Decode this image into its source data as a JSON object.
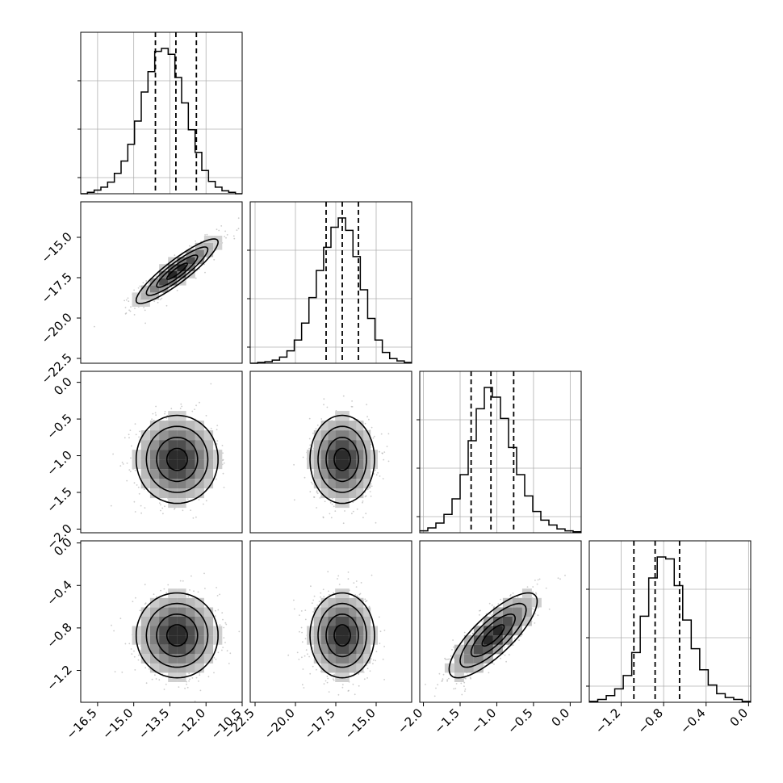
{
  "chart_data": {
    "type": "corner",
    "parameters": [
      {
        "id": "p1",
        "range": [
          -17.2,
          -10.5
        ],
        "ticks": [
          -16.5,
          -15.0,
          -13.5,
          -12.0,
          -10.5
        ],
        "tick_labels": [
          "−16.5",
          "−15.0",
          "−13.5",
          "−12.0",
          "−10.5"
        ],
        "quantiles": [
          -14.1,
          -13.25,
          -12.4
        ],
        "mean": -13.2,
        "sd": 0.85
      },
      {
        "id": "p2",
        "range": [
          -22.8,
          -12.8
        ],
        "ticks": [
          -22.5,
          -20.0,
          -17.5,
          -15.0
        ],
        "tick_labels": [
          "−22.5",
          "−20.0",
          "−17.5",
          "−15.0"
        ],
        "quantiles": [
          -18.1,
          -17.1,
          -16.1
        ],
        "mean": -17.1,
        "sd": 1.0
      },
      {
        "id": "p3",
        "range": [
          -2.05,
          0.15
        ],
        "ticks": [
          -2.0,
          -1.5,
          -1.0,
          -0.5,
          0.0
        ],
        "tick_labels": [
          "−2.0",
          "−1.5",
          "−1.0",
          "−0.5",
          "0.0"
        ],
        "quantiles": [
          -1.35,
          -1.08,
          -0.77
        ],
        "mean": -1.05,
        "sd": 0.3
      },
      {
        "id": "p4",
        "range": [
          -1.5,
          0.02
        ],
        "ticks": [
          -1.2,
          -0.8,
          -0.4,
          0.0
        ],
        "tick_labels": [
          "−1.2",
          "−0.8",
          "−0.4",
          "0.0"
        ],
        "quantiles": [
          -1.08,
          -0.88,
          -0.65
        ],
        "mean": -0.87,
        "sd": 0.2
      }
    ],
    "left_ticks": {
      "p2": {
        "ticks": [
          -15.0,
          -17.5,
          -20.0,
          -22.5
        ],
        "tick_labels": [
          "−15.0",
          "−17.5",
          "−20.0",
          "−22.5"
        ]
      },
      "p3": {
        "ticks": [
          0.0,
          -0.5,
          -1.0,
          -1.5,
          -2.0
        ],
        "tick_labels": [
          "0.0",
          "−0.5",
          "−1.0",
          "−1.5",
          "−2.0"
        ]
      },
      "p4": {
        "ticks": [
          0.0,
          -0.4,
          -0.8,
          -1.2
        ],
        "tick_labels": [
          "0.0",
          "−0.4",
          "−0.8",
          "−1.2"
        ]
      }
    },
    "correlations": {
      "1-0": 0.9,
      "2-0": 0.0,
      "2-1": 0.0,
      "3-0": 0.0,
      "3-1": 0.0,
      "3-2": 0.8
    },
    "histograms": [
      [
        0,
        2,
        5,
        9,
        16,
        28,
        45,
        68,
        100,
        140,
        168,
        196,
        200,
        192,
        160,
        125,
        88,
        57,
        32,
        17,
        9,
        4,
        2,
        0
      ],
      [
        0,
        1,
        2,
        4,
        8,
        16,
        30,
        52,
        85,
        120,
        150,
        176,
        188,
        172,
        138,
        95,
        58,
        30,
        14,
        6,
        3,
        1
      ],
      [
        2,
        5,
        10,
        19,
        35,
        60,
        95,
        128,
        150,
        140,
        118,
        88,
        60,
        38,
        22,
        13,
        8,
        4,
        2,
        1
      ],
      [
        1,
        3,
        7,
        14,
        28,
        52,
        90,
        130,
        152,
        150,
        122,
        86,
        56,
        34,
        18,
        9,
        5,
        3,
        1
      ]
    ],
    "grid": true,
    "contour_levels": 3
  }
}
